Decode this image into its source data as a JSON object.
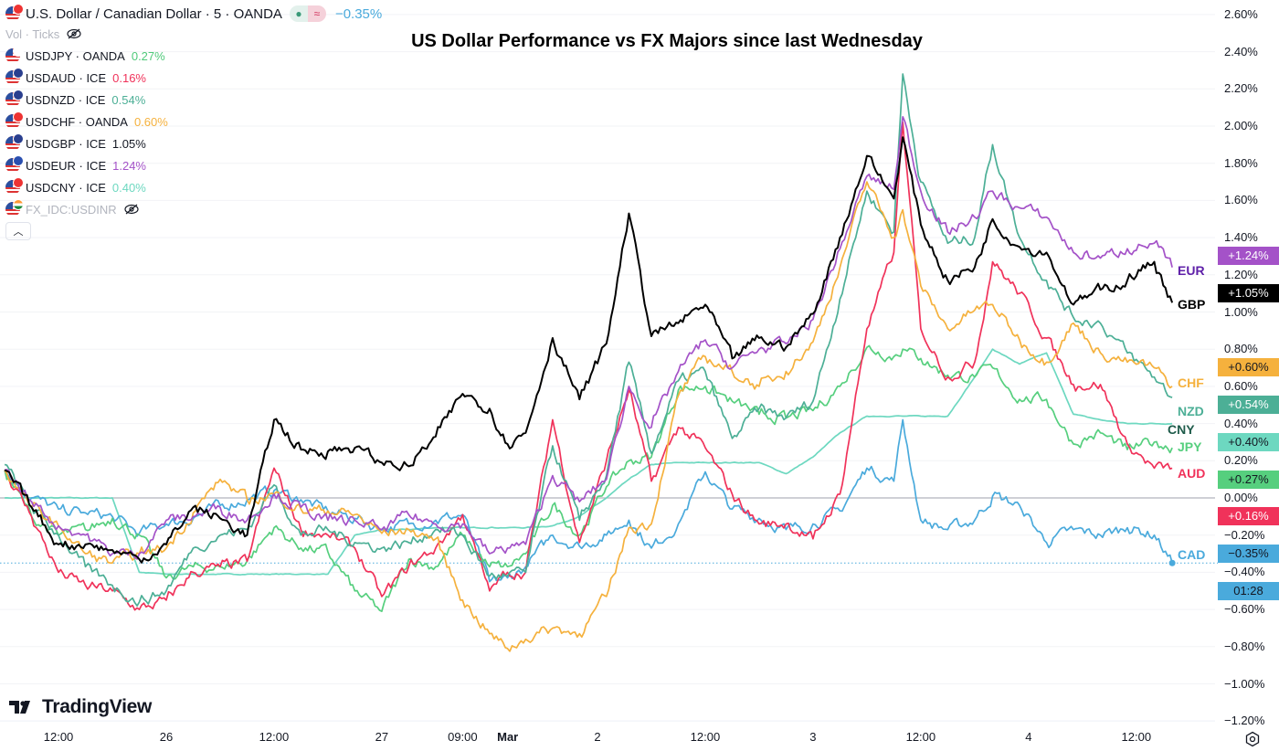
{
  "legend": {
    "title": "U.S. Dollar / Canadian Dollar · 5 · OANDA",
    "change": "−0.35%",
    "change_color": "#4aaadc",
    "vol_label": "Vol · Ticks",
    "items": [
      {
        "symbol": "USDJPY · OANDA",
        "value": "0.27%",
        "color": "#4fc97a"
      },
      {
        "symbol": "USDAUD · ICE",
        "value": "0.16%",
        "color": "#f0325a"
      },
      {
        "symbol": "USDNZD · ICE",
        "value": "0.54%",
        "color": "#4caf96"
      },
      {
        "symbol": "USDCHF · OANDA",
        "value": "0.60%",
        "color": "#f5b13d"
      },
      {
        "symbol": "USDGBP · ICE",
        "value": "1.05%",
        "color": "#131722"
      },
      {
        "symbol": "USDEUR · ICE",
        "value": "1.24%",
        "color": "#a452c8"
      },
      {
        "symbol": "USDCNY · ICE",
        "value": "0.40%",
        "color": "#6dd8c0"
      }
    ],
    "hidden_item": "FX_IDC:USDINR"
  },
  "branding": "TradingView",
  "chart_data": {
    "type": "line",
    "title": "US Dollar Performance vs FX Majors since last Wednesday",
    "ylim": [
      -1.2,
      2.6
    ],
    "y_unit": "%",
    "grid": true,
    "legend_position": "top-left",
    "y_ticks": [
      "2.60%",
      "2.40%",
      "2.20%",
      "2.00%",
      "1.80%",
      "1.60%",
      "1.40%",
      "1.20%",
      "1.00%",
      "0.80%",
      "0.60%",
      "0.40%",
      "0.20%",
      "0.00%",
      "−0.20%",
      "−0.40%",
      "−0.60%",
      "−0.80%",
      "−1.00%",
      "−1.20%"
    ],
    "x_ticks": [
      {
        "label": "12:00",
        "t": "Feb 25 12:00"
      },
      {
        "label": "26",
        "t": "Feb 26 00:00"
      },
      {
        "label": "12:00",
        "t": "Feb 26 12:00"
      },
      {
        "label": "27",
        "t": "Feb 27 00:00"
      },
      {
        "label": "09:00",
        "t": "Feb 27 09:00"
      },
      {
        "label": "Mar",
        "t": "Mar 1 14:00",
        "bold": true
      },
      {
        "label": "2",
        "t": "Mar 2 00:00"
      },
      {
        "label": "12:00",
        "t": "Mar 2 12:00"
      },
      {
        "label": "3",
        "t": "Mar 3 00:00"
      },
      {
        "label": "12:00",
        "t": "Mar 3 12:00"
      },
      {
        "label": "4",
        "t": "Mar 4 00:00"
      },
      {
        "label": "12:00",
        "t": "Mar 4 12:00"
      }
    ],
    "x": [
      "Feb 25 06:00",
      "Feb 25 09:00",
      "Feb 25 12:00",
      "Feb 25 15:00",
      "Feb 25 18:00",
      "Feb 25 21:00",
      "Feb 26 00:00",
      "Feb 26 03:00",
      "Feb 26 06:00",
      "Feb 26 09:00",
      "Feb 26 12:00",
      "Feb 26 15:00",
      "Feb 26 18:00",
      "Feb 26 21:00",
      "Feb 27 00:00",
      "Feb 27 03:00",
      "Feb 27 06:00",
      "Feb 27 09:00",
      "Feb 27 12:00",
      "Feb 27 14:00",
      "Mar 1 16:00",
      "Mar 1 19:00",
      "Mar 1 22:00",
      "Mar 2 01:00",
      "Mar 2 03:30",
      "Mar 2 06:00",
      "Mar 2 09:00",
      "Mar 2 12:00",
      "Mar 2 15:00",
      "Mar 2 18:00",
      "Mar 2 21:00",
      "Mar 3 00:00",
      "Mar 3 03:00",
      "Mar 3 06:00",
      "Mar 3 09:00",
      "Mar 3 10:00",
      "Mar 3 12:00",
      "Mar 3 15:00",
      "Mar 3 18:00",
      "Mar 3 20:00",
      "Mar 3 23:00",
      "Mar 4 02:00",
      "Mar 4 05:00",
      "Mar 4 08:00",
      "Mar 4 11:00",
      "Mar 4 14:00",
      "Mar 4 16:00"
    ],
    "series": [
      {
        "name": "CNY",
        "price": "+0.40%",
        "color": "#6dd8c0",
        "label_color": "#1e5b4a",
        "box_text": "#131722",
        "values": [
          0,
          0,
          0,
          0,
          0,
          -0.4,
          -0.41,
          -0.41,
          -0.41,
          -0.41,
          -0.41,
          -0.41,
          -0.41,
          -0.2,
          -0.17,
          -0.17,
          -0.16,
          -0.16,
          -0.16,
          -0.16,
          -0.16,
          -0.15,
          -0.1,
          0.0,
          0.1,
          0.18,
          0.19,
          0.19,
          0.19,
          0.19,
          0.13,
          0.22,
          0.35,
          0.44,
          0.44,
          0.44,
          0.44,
          0.44,
          0.65,
          0.8,
          0.72,
          0.78,
          0.45,
          0.42,
          0.4,
          0.4,
          0.4
        ]
      },
      {
        "name": "CAD",
        "price": "−0.35%",
        "countdown": "01:28",
        "color": "#4aaadc",
        "label_color": "#4aaadc",
        "box_text": "#131722",
        "values": [
          0.15,
          0.0,
          -0.06,
          -0.08,
          -0.1,
          -0.19,
          -0.14,
          -0.11,
          -0.04,
          -0.01,
          0.04,
          -0.01,
          -0.07,
          -0.11,
          -0.17,
          -0.14,
          -0.12,
          -0.09,
          -0.45,
          -0.43,
          -0.37,
          -0.2,
          -0.26,
          -0.2,
          -0.12,
          -0.27,
          -0.14,
          0.14,
          -0.06,
          -0.11,
          -0.17,
          -0.14,
          -0.07,
          0.16,
          0.09,
          0.42,
          -0.12,
          -0.17,
          -0.12,
          0.01,
          -0.04,
          -0.24,
          -0.17,
          -0.2,
          -0.16,
          -0.2,
          -0.35
        ]
      },
      {
        "name": "JPY",
        "price": "+0.27%",
        "color": "#56cf7e",
        "label_color": "#56cf7e",
        "box_text": "#131722",
        "values": [
          0.15,
          -0.1,
          -0.2,
          -0.17,
          -0.11,
          -0.2,
          -0.43,
          -0.37,
          -0.37,
          -0.34,
          -0.16,
          -0.27,
          -0.29,
          -0.5,
          -0.61,
          -0.33,
          -0.37,
          -0.2,
          -0.37,
          -0.37,
          -0.3,
          -0.04,
          -0.2,
          0.06,
          0.2,
          0.22,
          0.58,
          0.6,
          0.52,
          0.45,
          0.43,
          0.47,
          0.6,
          0.81,
          0.76,
          0.8,
          0.75,
          0.66,
          0.65,
          0.7,
          0.53,
          0.53,
          0.29,
          0.35,
          0.26,
          0.3,
          0.27
        ]
      },
      {
        "name": "AUD",
        "price": "+0.16%",
        "color": "#f0325a",
        "label_color": "#f0325a",
        "box_text": "#ffffff",
        "values": [
          0.15,
          -0.1,
          -0.4,
          -0.47,
          -0.5,
          -0.6,
          -0.55,
          -0.4,
          -0.37,
          -0.34,
          0.16,
          -0.17,
          -0.2,
          -0.27,
          -0.53,
          -0.37,
          -0.27,
          -0.09,
          -0.5,
          -0.4,
          -0.4,
          0.42,
          -0.24,
          0.2,
          0.58,
          0.09,
          0.38,
          0.27,
          0.02,
          -0.14,
          -0.14,
          -0.22,
          0.02,
          0.91,
          1.32,
          2.02,
          0.91,
          0.65,
          0.73,
          1.27,
          1.1,
          0.86,
          0.61,
          0.61,
          0.29,
          0.16,
          0.16
        ]
      },
      {
        "name": "NZD",
        "price": "+0.54%",
        "color": "#4caf96",
        "label_color": "#4caf96",
        "box_text": "#ffffff",
        "values": [
          0.18,
          -0.05,
          -0.2,
          -0.37,
          -0.47,
          -0.56,
          -0.5,
          -0.27,
          -0.2,
          -0.17,
          0.07,
          -0.2,
          -0.17,
          -0.24,
          -0.27,
          -0.24,
          -0.17,
          -0.2,
          -0.42,
          -0.42,
          -0.4,
          0.28,
          -0.12,
          0.12,
          0.73,
          0.24,
          0.63,
          0.68,
          0.32,
          0.48,
          0.43,
          0.52,
          1.07,
          1.65,
          1.43,
          2.28,
          1.7,
          1.37,
          1.4,
          1.9,
          1.4,
          1.17,
          0.97,
          0.94,
          0.78,
          0.65,
          0.54
        ]
      },
      {
        "name": "CHF",
        "price": "+0.60%",
        "color": "#f5b13d",
        "label_color": "#f5b13d",
        "box_text": "#131722",
        "values": [
          0.15,
          -0.05,
          -0.15,
          -0.3,
          -0.35,
          -0.3,
          -0.27,
          -0.08,
          0.1,
          -0.01,
          0.02,
          -0.06,
          -0.07,
          -0.09,
          -0.19,
          -0.17,
          -0.22,
          -0.55,
          -0.73,
          -0.81,
          -0.76,
          -0.7,
          -0.73,
          -0.53,
          -0.16,
          -0.14,
          0.55,
          0.76,
          0.68,
          0.6,
          0.68,
          0.84,
          1.24,
          1.7,
          1.4,
          1.55,
          1.14,
          0.91,
          1.01,
          1.04,
          0.85,
          0.73,
          0.94,
          0.78,
          0.73,
          0.7,
          0.6
        ]
      },
      {
        "name": "EUR",
        "price": "+1.24%",
        "color": "#a452c8",
        "label_color": "#5e1fa8",
        "box_text": "#ffffff",
        "values": [
          0.15,
          -0.02,
          -0.15,
          -0.2,
          -0.3,
          -0.3,
          -0.12,
          -0.1,
          -0.05,
          -0.12,
          0.02,
          -0.05,
          -0.12,
          -0.12,
          -0.17,
          -0.09,
          -0.14,
          -0.14,
          -0.3,
          -0.27,
          -0.25,
          0.12,
          -0.02,
          0.1,
          0.6,
          0.38,
          0.68,
          0.85,
          0.7,
          0.8,
          0.83,
          0.96,
          1.34,
          1.73,
          1.66,
          2.05,
          1.65,
          1.43,
          1.51,
          1.65,
          1.56,
          1.51,
          1.32,
          1.29,
          1.34,
          1.37,
          1.24
        ]
      },
      {
        "name": "GBP",
        "price": "+1.05%",
        "color": "#000000",
        "label_color": "#000000",
        "box_text": "#ffffff",
        "values": [
          0.15,
          -0.05,
          -0.25,
          -0.25,
          -0.28,
          -0.33,
          -0.25,
          -0.05,
          -0.11,
          -0.2,
          0.42,
          0.26,
          0.25,
          0.27,
          0.19,
          0.17,
          0.33,
          0.56,
          0.48,
          0.29,
          0.35,
          0.86,
          0.53,
          0.83,
          1.53,
          0.87,
          0.94,
          1.04,
          0.75,
          0.86,
          0.81,
          0.99,
          1.4,
          1.84,
          1.61,
          1.94,
          1.47,
          1.17,
          1.24,
          1.5,
          1.35,
          1.32,
          1.04,
          1.12,
          1.17,
          1.27,
          1.05
        ]
      }
    ]
  }
}
